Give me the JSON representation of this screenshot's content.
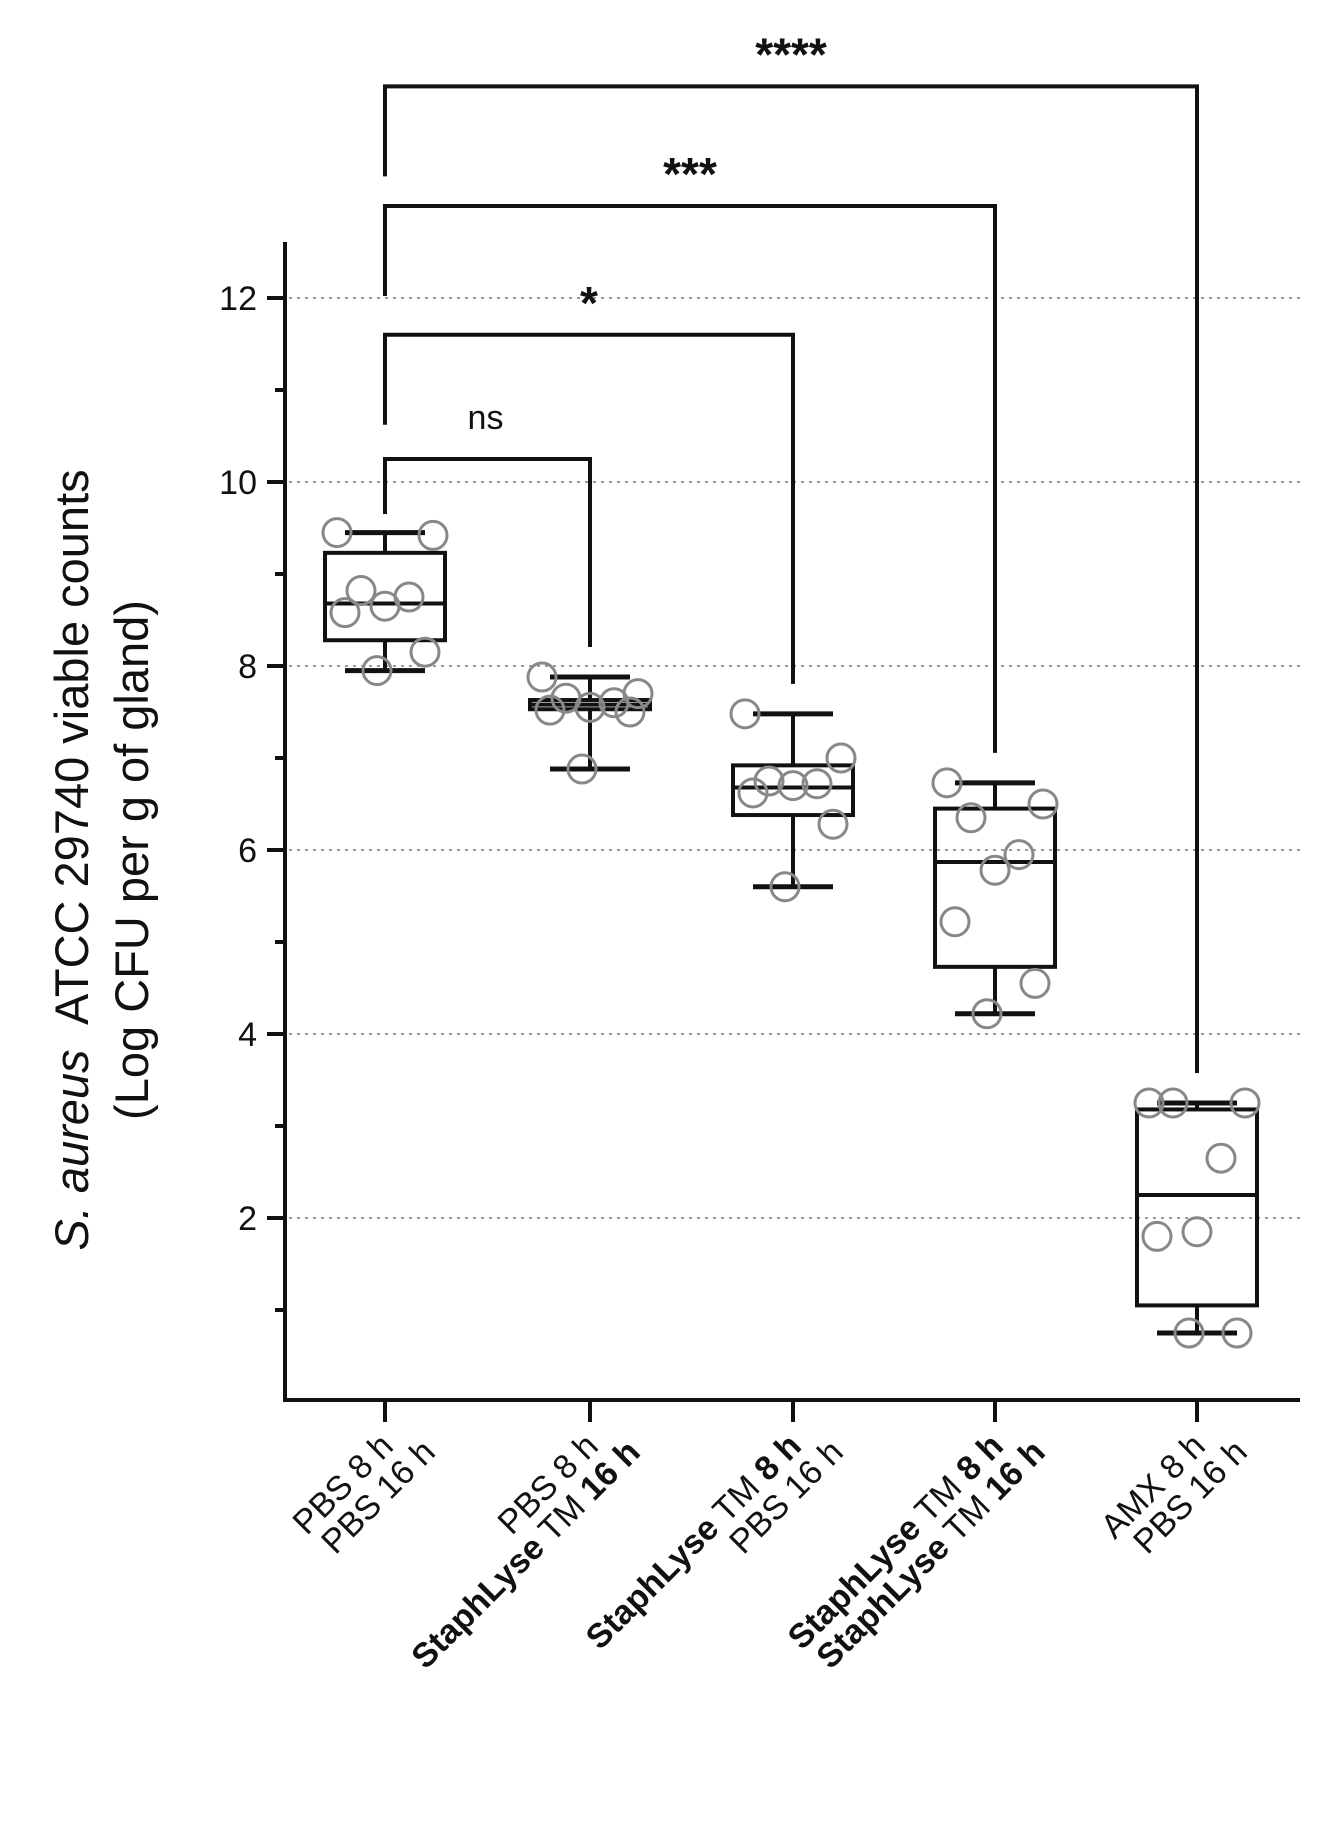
{
  "chart_data": {
    "type": "box",
    "ylabel": {
      "line1_italic": "S. aureus",
      "line1_rest": "ATCC 29740 viable counts",
      "line2": "(Log CFU per g of gland)"
    },
    "ylim": [
      0,
      12.5
    ],
    "yticks": [
      2,
      4,
      6,
      8,
      10,
      12
    ],
    "grid": "horizontal dotted",
    "groups": [
      {
        "line1": [
          {
            "t": "PBS 8 h",
            "b": false
          }
        ],
        "line2": [
          {
            "t": "PBS 16 h",
            "b": false
          }
        ],
        "min": 7.95,
        "q1": 8.28,
        "median": 8.68,
        "q3": 9.23,
        "max": 9.45,
        "points": [
          9.45,
          9.42,
          8.82,
          8.75,
          8.65,
          8.58,
          8.15,
          7.95
        ]
      },
      {
        "line1": [
          {
            "t": "PBS 8 h",
            "b": false
          }
        ],
        "line2": [
          {
            "t": "StaphLyse",
            "b": true
          },
          {
            "t": " TM ",
            "b": false
          },
          {
            "t": "16 h",
            "b": true
          }
        ],
        "min": 6.88,
        "q1": 7.53,
        "median": 7.58,
        "q3": 7.63,
        "max": 7.88,
        "points": [
          7.88,
          7.7,
          7.65,
          7.6,
          7.55,
          7.52,
          7.5,
          6.88
        ]
      },
      {
        "line1": [
          {
            "t": "StaphLyse",
            "b": true
          },
          {
            "t": " TM  ",
            "b": false
          },
          {
            "t": "8 h",
            "b": true
          }
        ],
        "line2": [
          {
            "t": "PBS 16 h",
            "b": false
          }
        ],
        "min": 5.6,
        "q1": 6.38,
        "median": 6.68,
        "q3": 6.92,
        "max": 7.48,
        "points": [
          7.48,
          7.0,
          6.75,
          6.72,
          6.7,
          6.62,
          6.28,
          5.6
        ]
      },
      {
        "line1": [
          {
            "t": "StaphLyse",
            "b": true
          },
          {
            "t": " TM ",
            "b": false
          },
          {
            "t": "8 h",
            "b": true
          }
        ],
        "line2": [
          {
            "t": "StaphLyse",
            "b": true
          },
          {
            "t": " TM ",
            "b": false
          },
          {
            "t": "16 h",
            "b": true
          }
        ],
        "min": 4.22,
        "q1": 4.73,
        "median": 5.87,
        "q3": 6.45,
        "max": 6.73,
        "points": [
          6.73,
          6.5,
          6.35,
          5.95,
          5.78,
          5.22,
          4.55,
          4.22
        ]
      },
      {
        "line1": [
          {
            "t": "AMX 8 h",
            "b": false
          }
        ],
        "line2": [
          {
            "t": "PBS 16 h",
            "b": false
          }
        ],
        "min": 0.75,
        "q1": 1.05,
        "median": 2.25,
        "q3": 3.18,
        "max": 3.25,
        "points": [
          3.25,
          3.25,
          3.25,
          2.65,
          1.85,
          1.8,
          0.75,
          0.75
        ]
      }
    ],
    "comparisons": [
      {
        "from": 0,
        "to": 1,
        "label": "ns",
        "level": 10.25
      },
      {
        "from": 0,
        "to": 2,
        "label": "*",
        "level": 11.6
      },
      {
        "from": 0,
        "to": 3,
        "label": "***",
        "level": 13.0
      },
      {
        "from": 0,
        "to": 4,
        "label": "****",
        "level": 14.3
      }
    ]
  }
}
